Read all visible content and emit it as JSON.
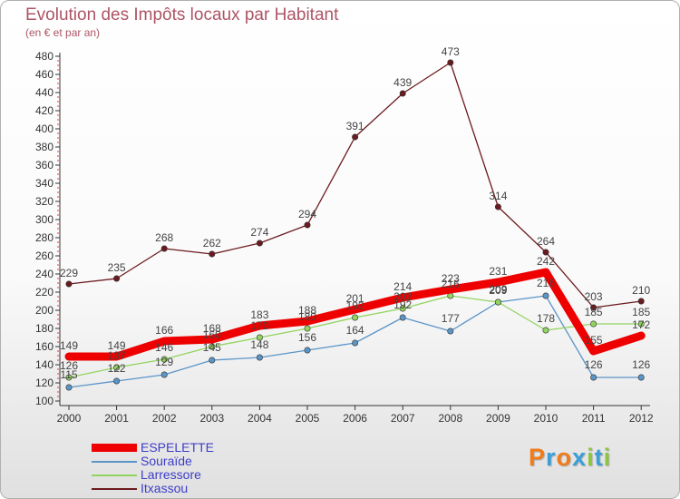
{
  "page": {
    "title": "Evolution des Impôts locaux par Habitant",
    "subtitle": "(en € et par an)"
  },
  "logo": {
    "text": "Proxiti"
  },
  "chart_data": {
    "type": "line",
    "title": "Evolution des Impôts locaux par Habitant",
    "subtitle": "(en € et par an)",
    "xlabel": "",
    "ylabel": "",
    "x": [
      "2000",
      "2001",
      "2002",
      "2003",
      "2004",
      "2005",
      "2006",
      "2007",
      "2008",
      "2009",
      "2010",
      "2011",
      "2012"
    ],
    "ylim": [
      100,
      480
    ],
    "yticks": [
      100,
      120,
      140,
      160,
      180,
      200,
      220,
      240,
      260,
      280,
      300,
      320,
      340,
      360,
      380,
      400,
      420,
      440,
      460,
      480
    ],
    "grid": false,
    "legend": "bottom-left",
    "series": [
      {
        "name": "ESPELETTE",
        "color": "#ee0000",
        "emphasis": true,
        "values": [
          149,
          149,
          166,
          168,
          183,
          188,
          201,
          214,
          223,
          231,
          242,
          155,
          172
        ]
      },
      {
        "name": "Souraïde",
        "color": "#5b95c8",
        "emphasis": false,
        "values": [
          115,
          122,
          129,
          145,
          148,
          156,
          164,
          192,
          177,
          209,
          216,
          126,
          126
        ]
      },
      {
        "name": "Larressore",
        "color": "#92d460",
        "emphasis": false,
        "values": [
          126,
          137,
          146,
          160,
          170,
          180,
          192,
          202,
          216,
          209,
          178,
          185,
          185
        ]
      },
      {
        "name": "Itxassou",
        "color": "#6b1a1f",
        "emphasis": false,
        "values": [
          229,
          235,
          268,
          262,
          274,
          294,
          391,
          439,
          473,
          314,
          264,
          203,
          210
        ]
      }
    ]
  }
}
